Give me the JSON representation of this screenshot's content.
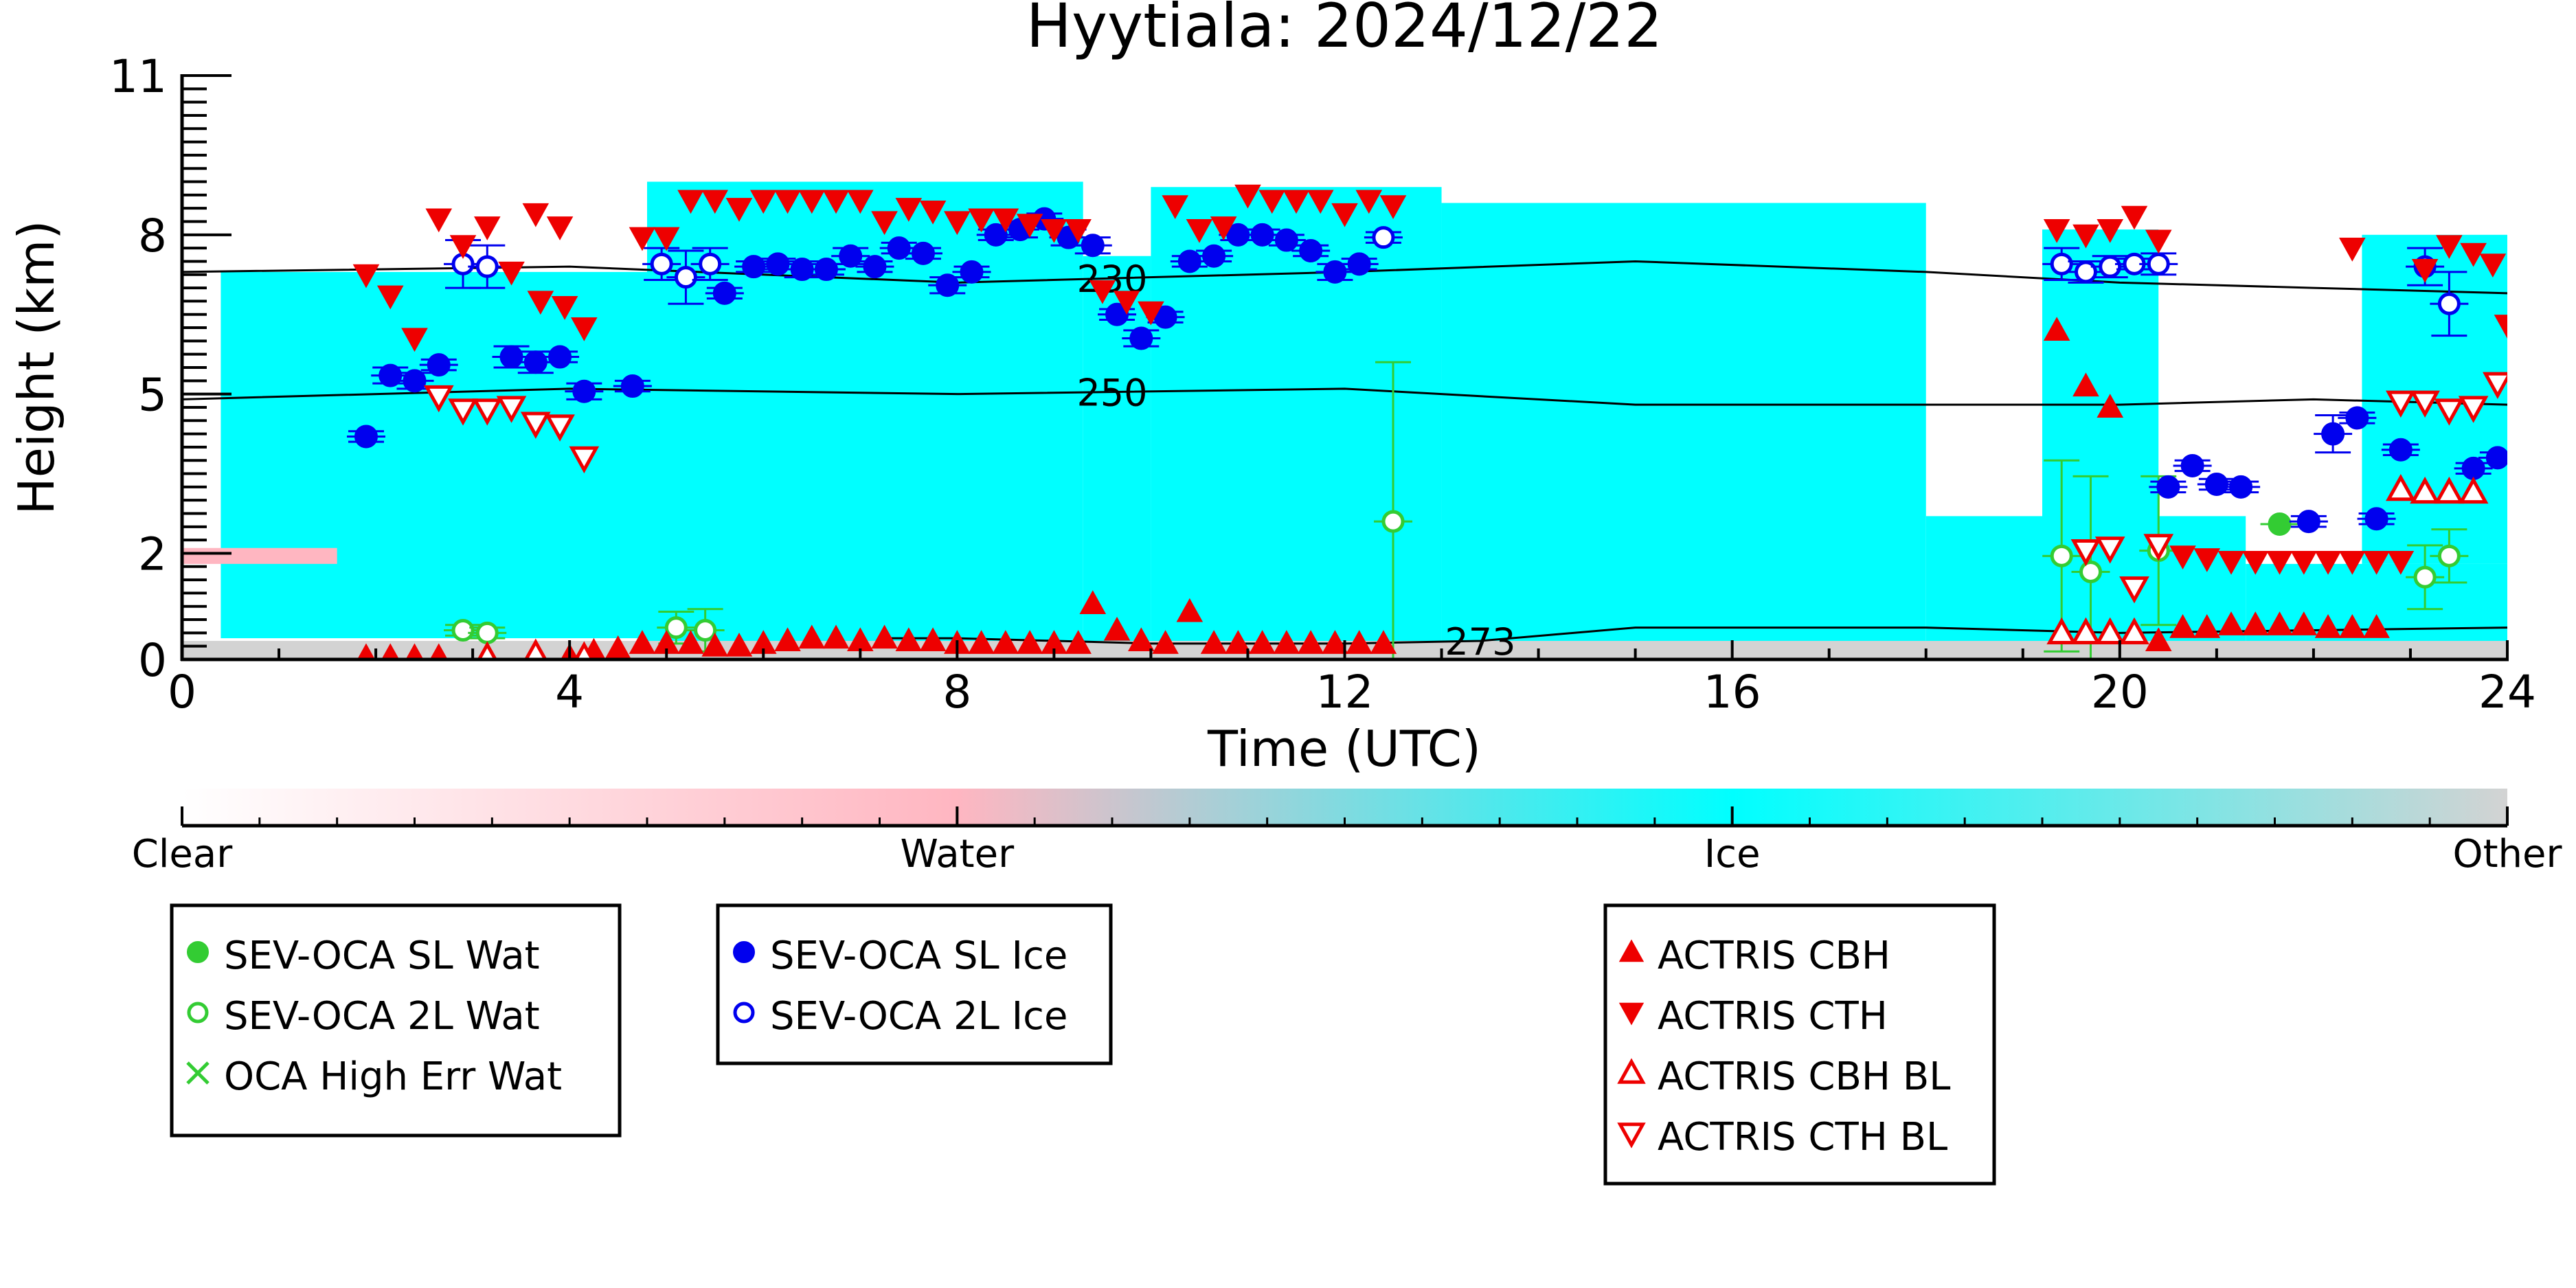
{
  "chart_data": {
    "type": "scatter",
    "title": "Hyytiala: 2024/12/22",
    "xlabel": "Time (UTC)",
    "ylabel": "Height (km)",
    "xlim": [
      0,
      24
    ],
    "ylim": [
      0,
      11
    ],
    "x_ticks": [
      0,
      4,
      8,
      12,
      16,
      20,
      24
    ],
    "y_ticks": [
      0,
      2,
      5,
      8,
      11
    ],
    "background_classes": {
      "labels": [
        "Clear",
        "Water",
        "Ice",
        "Other"
      ],
      "colors": [
        "#ffffff",
        "#ffb6c1",
        "#00ffff",
        "#d3d3d3"
      ]
    },
    "background_layers": [
      {
        "class": "Ice",
        "start": 0.4,
        "end": 4.8,
        "bottom": 0.4,
        "top": 7.3
      },
      {
        "class": "Ice",
        "start": 4.8,
        "end": 9.3,
        "bottom": 0.1,
        "top": 9.0
      },
      {
        "class": "Ice",
        "start": 9.3,
        "end": 10.0,
        "bottom": 0.3,
        "top": 7.6
      },
      {
        "class": "Ice",
        "start": 10.0,
        "end": 13.0,
        "bottom": 0.1,
        "top": 8.9
      },
      {
        "class": "Ice",
        "start": 13.0,
        "end": 18.0,
        "bottom": 0.1,
        "top": 8.6
      },
      {
        "class": "Ice",
        "start": 18.0,
        "end": 21.3,
        "bottom": 0.1,
        "top": 2.7
      },
      {
        "class": "Ice",
        "start": 19.2,
        "end": 20.4,
        "bottom": 2.0,
        "top": 8.1
      },
      {
        "class": "Ice",
        "start": 21.3,
        "end": 24.0,
        "bottom": 0.1,
        "top": 1.8
      },
      {
        "class": "Ice",
        "start": 22.5,
        "end": 24.0,
        "bottom": 1.8,
        "top": 8.0
      },
      {
        "class": "Water",
        "start": 0.0,
        "end": 1.6,
        "bottom": 1.8,
        "top": 2.1
      },
      {
        "class": "Other",
        "start": 0.0,
        "end": 24.0,
        "bottom": 0.0,
        "top": 0.35
      }
    ],
    "contours": [
      {
        "label": "230",
        "label_x": 9.6,
        "x": [
          0,
          4,
          8,
          12,
          15,
          18,
          20,
          22,
          24
        ],
        "y": [
          7.3,
          7.4,
          7.1,
          7.3,
          7.5,
          7.3,
          7.1,
          7.0,
          6.9
        ]
      },
      {
        "label": "250",
        "label_x": 9.6,
        "x": [
          0,
          4,
          8,
          12,
          15,
          18,
          20,
          22,
          24
        ],
        "y": [
          4.9,
          5.1,
          5.0,
          5.1,
          4.8,
          4.8,
          4.8,
          4.9,
          4.8
        ]
      },
      {
        "label": "273",
        "label_x": 13.4,
        "x": [
          7.2,
          8,
          10,
          12,
          13.4,
          15,
          18,
          20,
          24
        ],
        "y": [
          0.4,
          0.4,
          0.3,
          0.3,
          0.35,
          0.6,
          0.6,
          0.5,
          0.6
        ]
      }
    ],
    "series": [
      {
        "name": "SEV-OCA SL Wat",
        "marker": "filled-circle",
        "color": "#33cc33",
        "points": [
          [
            21.65,
            2.55
          ]
        ]
      },
      {
        "name": "SEV-OCA 2L Wat",
        "marker": "open-circle",
        "color": "#33cc33",
        "points": [
          [
            2.9,
            0.55,
            0.1
          ],
          [
            3.15,
            0.5,
            0.1
          ],
          [
            5.1,
            0.6,
            0.3
          ],
          [
            5.4,
            0.55,
            0.4
          ],
          [
            12.5,
            2.6,
            3.0
          ],
          [
            19.4,
            1.95,
            1.8
          ],
          [
            19.7,
            1.65,
            1.8
          ],
          [
            20.4,
            2.05,
            1.4
          ],
          [
            23.15,
            1.55,
            0.6
          ],
          [
            23.4,
            1.95,
            0.5
          ]
        ]
      },
      {
        "name": "OCA High Err Wat",
        "marker": "x",
        "color": "#33cc33",
        "points": []
      },
      {
        "name": "SEV-OCA SL Ice",
        "marker": "filled-circle",
        "color": "#0000ee",
        "points": [
          [
            1.9,
            4.2,
            0.1
          ],
          [
            2.15,
            5.35,
            0.15
          ],
          [
            2.4,
            5.25,
            0.15
          ],
          [
            2.65,
            5.55,
            0.1
          ],
          [
            3.4,
            5.7,
            0.2
          ],
          [
            3.65,
            5.6,
            0.2
          ],
          [
            3.9,
            5.7,
            0.1
          ],
          [
            4.15,
            5.05,
            0.15
          ],
          [
            4.65,
            5.15,
            0.1
          ],
          [
            5.6,
            6.9,
            0.1
          ],
          [
            5.9,
            7.4,
            0.1
          ],
          [
            6.15,
            7.45,
            0.1
          ],
          [
            6.4,
            7.35,
            0.15
          ],
          [
            6.65,
            7.35,
            0.1
          ],
          [
            6.9,
            7.6,
            0.15
          ],
          [
            7.15,
            7.4,
            0.1
          ],
          [
            7.4,
            7.75,
            0.1
          ],
          [
            7.65,
            7.65,
            0.1
          ],
          [
            7.9,
            7.05,
            0.15
          ],
          [
            8.15,
            7.3,
            0.1
          ],
          [
            8.4,
            8.0,
            0.1
          ],
          [
            8.65,
            8.1,
            0.15
          ],
          [
            8.9,
            8.3,
            0.1
          ],
          [
            9.15,
            7.95,
            0.15
          ],
          [
            9.4,
            7.8,
            0.15
          ],
          [
            9.65,
            6.5,
            0.1
          ],
          [
            9.9,
            6.05,
            0.15
          ],
          [
            10.15,
            6.45,
            0.1
          ],
          [
            10.4,
            7.5,
            0.1
          ],
          [
            10.65,
            7.6,
            0.1
          ],
          [
            10.9,
            8.0,
            0.1
          ],
          [
            11.15,
            8.0,
            0.1
          ],
          [
            11.4,
            7.9,
            0.1
          ],
          [
            11.65,
            7.7,
            0.1
          ],
          [
            11.9,
            7.3,
            0.15
          ],
          [
            12.15,
            7.45,
            0.1
          ],
          [
            20.5,
            3.25,
            0.1
          ],
          [
            20.75,
            3.65,
            0.1
          ],
          [
            21.0,
            3.3,
            0.1
          ],
          [
            21.25,
            3.25,
            0.1
          ],
          [
            21.95,
            2.6,
            0.1
          ],
          [
            22.2,
            4.25,
            0.35
          ],
          [
            22.45,
            4.55,
            0.1
          ],
          [
            22.65,
            2.65,
            0.1
          ],
          [
            22.9,
            3.95,
            0.1
          ],
          [
            23.65,
            3.6,
            0.1
          ],
          [
            23.9,
            3.8,
            0.1
          ]
        ]
      },
      {
        "name": "SEV-OCA 2L Ice",
        "marker": "open-circle",
        "color": "#0000ee",
        "points": [
          [
            2.9,
            7.45,
            0.45
          ],
          [
            3.15,
            7.4,
            0.4
          ],
          [
            4.95,
            7.45,
            0.3
          ],
          [
            5.2,
            7.2,
            0.5
          ],
          [
            5.45,
            7.45,
            0.3
          ],
          [
            12.4,
            7.95,
            0.1
          ],
          [
            19.4,
            7.45,
            0.3
          ],
          [
            19.65,
            7.3,
            0.2
          ],
          [
            19.9,
            7.4,
            0.2
          ],
          [
            20.15,
            7.45,
            0.1
          ],
          [
            20.4,
            7.45,
            0.2
          ],
          [
            23.15,
            7.4,
            0.35
          ],
          [
            23.4,
            6.7,
            0.6
          ]
        ]
      },
      {
        "name": "ACTRIS CBH",
        "marker": "triangle-up",
        "color": "#ee0000",
        "points": [
          [
            1.9,
            0.05
          ],
          [
            2.15,
            0.05
          ],
          [
            2.4,
            0.05
          ],
          [
            2.65,
            0.05
          ],
          [
            4.0,
            0.05
          ],
          [
            4.25,
            0.15
          ],
          [
            4.5,
            0.2
          ],
          [
            4.75,
            0.3
          ],
          [
            5.0,
            0.3
          ],
          [
            5.25,
            0.3
          ],
          [
            5.5,
            0.25
          ],
          [
            5.75,
            0.25
          ],
          [
            6.0,
            0.3
          ],
          [
            6.25,
            0.35
          ],
          [
            6.5,
            0.4
          ],
          [
            6.75,
            0.4
          ],
          [
            7.0,
            0.35
          ],
          [
            7.25,
            0.4
          ],
          [
            7.5,
            0.35
          ],
          [
            7.75,
            0.35
          ],
          [
            8.0,
            0.3
          ],
          [
            8.25,
            0.3
          ],
          [
            8.5,
            0.3
          ],
          [
            8.75,
            0.3
          ],
          [
            9.0,
            0.3
          ],
          [
            9.25,
            0.3
          ],
          [
            9.4,
            1.05
          ],
          [
            9.65,
            0.55
          ],
          [
            9.9,
            0.35
          ],
          [
            10.15,
            0.3
          ],
          [
            10.4,
            0.9
          ],
          [
            10.65,
            0.3
          ],
          [
            10.9,
            0.3
          ],
          [
            11.15,
            0.3
          ],
          [
            11.4,
            0.3
          ],
          [
            11.65,
            0.3
          ],
          [
            11.9,
            0.3
          ],
          [
            12.15,
            0.3
          ],
          [
            12.4,
            0.3
          ],
          [
            19.35,
            6.2
          ],
          [
            19.65,
            5.15
          ],
          [
            19.9,
            4.75
          ],
          [
            20.4,
            0.35
          ],
          [
            20.65,
            0.6
          ],
          [
            20.9,
            0.6
          ],
          [
            21.15,
            0.65
          ],
          [
            21.4,
            0.65
          ],
          [
            21.65,
            0.65
          ],
          [
            21.9,
            0.65
          ],
          [
            22.15,
            0.6
          ],
          [
            22.4,
            0.6
          ],
          [
            22.65,
            0.6
          ]
        ]
      },
      {
        "name": "ACTRIS CTH",
        "marker": "triangle-down",
        "color": "#ee0000",
        "points": [
          [
            1.9,
            7.25
          ],
          [
            2.15,
            6.85
          ],
          [
            2.4,
            6.05
          ],
          [
            2.65,
            8.3
          ],
          [
            2.9,
            7.8
          ],
          [
            3.15,
            8.15
          ],
          [
            3.4,
            7.3
          ],
          [
            3.65,
            8.4
          ],
          [
            3.9,
            8.15
          ],
          [
            3.7,
            6.75
          ],
          [
            3.95,
            6.65
          ],
          [
            4.15,
            6.25
          ],
          [
            4.75,
            7.95
          ],
          [
            5.0,
            7.95
          ],
          [
            5.25,
            8.65
          ],
          [
            5.5,
            8.65
          ],
          [
            5.75,
            8.5
          ],
          [
            6.0,
            8.65
          ],
          [
            6.25,
            8.65
          ],
          [
            6.5,
            8.65
          ],
          [
            6.75,
            8.65
          ],
          [
            7.0,
            8.65
          ],
          [
            7.25,
            8.25
          ],
          [
            7.5,
            8.5
          ],
          [
            7.75,
            8.45
          ],
          [
            8.0,
            8.25
          ],
          [
            8.25,
            8.3
          ],
          [
            8.5,
            8.3
          ],
          [
            8.75,
            8.2
          ],
          [
            9.0,
            8.1
          ],
          [
            9.25,
            8.1
          ],
          [
            9.5,
            6.95
          ],
          [
            9.75,
            6.75
          ],
          [
            10.0,
            6.55
          ],
          [
            10.25,
            8.55
          ],
          [
            10.5,
            8.1
          ],
          [
            10.75,
            8.15
          ],
          [
            11.0,
            8.75
          ],
          [
            11.25,
            8.65
          ],
          [
            11.5,
            8.65
          ],
          [
            11.75,
            8.65
          ],
          [
            12.0,
            8.4
          ],
          [
            12.25,
            8.65
          ],
          [
            12.5,
            8.55
          ],
          [
            19.35,
            8.1
          ],
          [
            19.65,
            8.0
          ],
          [
            19.9,
            8.1
          ],
          [
            20.15,
            8.35
          ],
          [
            20.4,
            7.9
          ],
          [
            20.65,
            1.95
          ],
          [
            20.9,
            1.9
          ],
          [
            21.15,
            1.85
          ],
          [
            21.4,
            1.85
          ],
          [
            21.65,
            1.85
          ],
          [
            21.9,
            1.85
          ],
          [
            22.15,
            1.85
          ],
          [
            22.4,
            1.85
          ],
          [
            22.65,
            1.85
          ],
          [
            22.9,
            1.85
          ],
          [
            22.4,
            7.75
          ],
          [
            23.15,
            7.35
          ],
          [
            23.4,
            7.8
          ],
          [
            23.65,
            7.65
          ],
          [
            23.85,
            7.45
          ],
          [
            24.0,
            6.3
          ]
        ]
      },
      {
        "name": "ACTRIS CBH BL",
        "marker": "triangle-up-open",
        "color": "#ee0000",
        "points": [
          [
            3.15,
            0.05
          ],
          [
            3.65,
            0.1
          ],
          [
            4.15,
            0.05
          ],
          [
            19.4,
            0.5
          ],
          [
            19.65,
            0.5
          ],
          [
            19.9,
            0.5
          ],
          [
            20.15,
            0.5
          ],
          [
            22.9,
            3.2
          ],
          [
            23.15,
            3.15
          ],
          [
            23.4,
            3.15
          ],
          [
            23.65,
            3.15
          ]
        ]
      },
      {
        "name": "ACTRIS CTH BL",
        "marker": "triangle-down-open",
        "color": "#ee0000",
        "points": [
          [
            2.65,
            4.95
          ],
          [
            2.9,
            4.7
          ],
          [
            3.15,
            4.7
          ],
          [
            3.4,
            4.75
          ],
          [
            3.65,
            4.45
          ],
          [
            3.9,
            4.4
          ],
          [
            4.15,
            3.8
          ],
          [
            19.65,
            2.05
          ],
          [
            19.9,
            2.1
          ],
          [
            20.15,
            1.35
          ],
          [
            20.4,
            2.15
          ],
          [
            22.9,
            4.85
          ],
          [
            23.15,
            4.85
          ],
          [
            23.4,
            4.7
          ],
          [
            23.65,
            4.75
          ],
          [
            23.9,
            5.2
          ]
        ]
      }
    ],
    "legends": [
      {
        "entries": [
          "SEV-OCA SL Wat",
          "SEV-OCA 2L Wat",
          "OCA High Err Wat"
        ]
      },
      {
        "entries": [
          "SEV-OCA SL Ice",
          "SEV-OCA 2L Ice"
        ]
      },
      {
        "entries": [
          "ACTRIS CBH",
          "ACTRIS CTH",
          "ACTRIS CBH BL",
          "ACTRIS CTH BL"
        ]
      }
    ]
  }
}
